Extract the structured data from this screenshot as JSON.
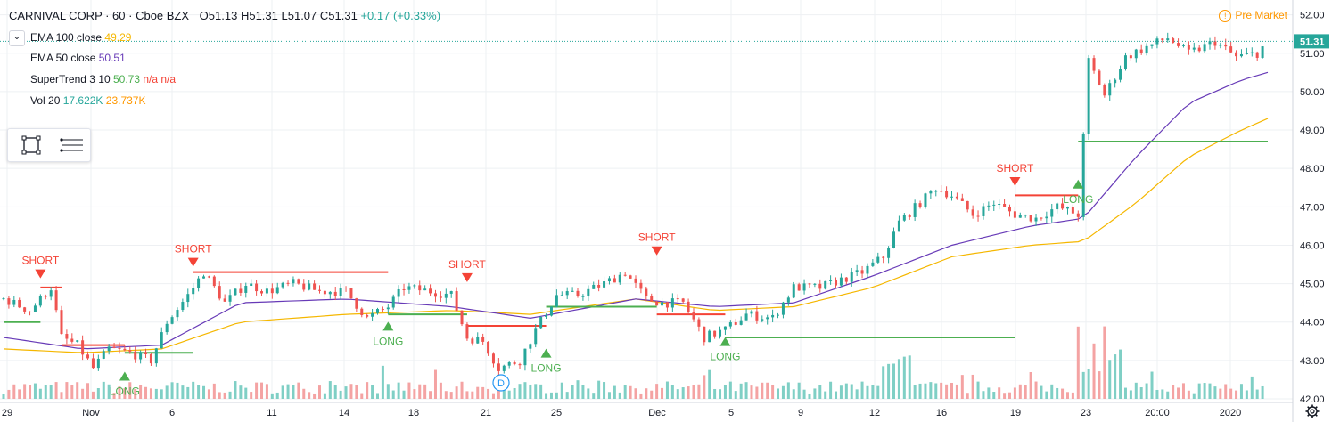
{
  "header": {
    "symbol": "CARNIVAL CORP · 60 · Cboe BZX",
    "open": "O51.13",
    "high": "H51.31",
    "low": "L51.07",
    "close": "C51.31",
    "change": "+0.17 (+0.33%)"
  },
  "indicators": [
    {
      "name": "EMA 100 close",
      "value": "49.29",
      "color": "#f5b700"
    },
    {
      "name": "EMA 50 close",
      "value": "50.51",
      "color": "#673ab7"
    },
    {
      "name": "SuperTrend 3 10",
      "value": "50.73",
      "extra1": "n/a",
      "extra2": "n/a",
      "color": "#4caf50",
      "extra_color": "#f44336"
    },
    {
      "name": "Vol 20",
      "value": "17.622K",
      "value2": "23.737K",
      "color": "#26a69a",
      "color2": "#ff9800"
    }
  ],
  "collapse_glyph": "⌄",
  "pre_market": {
    "icon": "!",
    "label": "Pre Market"
  },
  "last_price_label": "51.31",
  "dividend_marker": "D",
  "colors": {
    "up": "#26a69a",
    "down": "#ef5350",
    "vol_up": "#7fcfc5",
    "vol_down": "#f4a3a3",
    "ema100": "#f5b700",
    "ema50": "#673ab7",
    "st_long": "#4caf50",
    "st_short": "#f44336",
    "grid": "#eef0f3",
    "axis_text": "#131722",
    "last_price_bg": "#26a69a"
  },
  "chart_data": {
    "type": "candlestick",
    "y_axis_ticks": [
      "52.00",
      "51.00",
      "50.00",
      "49.00",
      "48.00",
      "47.00",
      "46.00",
      "45.00",
      "44.00",
      "43.00",
      "42.00"
    ],
    "ylim": [
      42.0,
      52.2
    ],
    "x_axis_ticks": [
      "29",
      "Nov",
      "6",
      "11",
      "14",
      "18",
      "21",
      "25",
      "Dec",
      "5",
      "9",
      "12",
      "16",
      "19",
      "23",
      "20:00",
      "2020"
    ],
    "n_bars": 280,
    "price_path": [
      [
        0,
        44.6
      ],
      [
        10,
        44.3
      ],
      [
        18,
        44.9
      ],
      [
        22,
        43.6
      ],
      [
        28,
        43.4
      ],
      [
        34,
        42.8
      ],
      [
        40,
        43.3
      ],
      [
        48,
        43.2
      ],
      [
        56,
        43.0
      ],
      [
        62,
        44.0
      ],
      [
        70,
        44.7
      ],
      [
        76,
        45.3
      ],
      [
        84,
        44.5
      ],
      [
        92,
        45.0
      ],
      [
        100,
        44.8
      ],
      [
        110,
        45.0
      ],
      [
        120,
        44.8
      ],
      [
        130,
        44.8
      ],
      [
        138,
        44.1
      ],
      [
        146,
        44.4
      ],
      [
        152,
        44.9
      ],
      [
        162,
        44.8
      ],
      [
        170,
        44.7
      ],
      [
        176,
        43.6
      ],
      [
        182,
        43.5
      ],
      [
        188,
        42.8
      ],
      [
        196,
        43.0
      ],
      [
        202,
        43.8
      ],
      [
        210,
        44.7
      ],
      [
        218,
        44.7
      ],
      [
        228,
        45.0
      ],
      [
        236,
        45.3
      ],
      [
        244,
        44.6
      ],
      [
        250,
        44.5
      ],
      [
        258,
        44.5
      ],
      [
        266,
        43.6
      ],
      [
        274,
        43.8
      ],
      [
        282,
        44.2
      ],
      [
        292,
        44.1
      ],
      [
        300,
        44.9
      ],
      [
        310,
        44.9
      ],
      [
        318,
        45.1
      ],
      [
        326,
        45.3
      ],
      [
        334,
        45.7
      ],
      [
        340,
        46.6
      ],
      [
        348,
        47.1
      ],
      [
        354,
        47.5
      ],
      [
        360,
        47.3
      ],
      [
        368,
        46.8
      ],
      [
        376,
        47.1
      ],
      [
        384,
        46.8
      ],
      [
        392,
        46.7
      ],
      [
        400,
        47.0
      ],
      [
        408,
        46.8
      ],
      [
        412,
        50.8
      ],
      [
        418,
        49.9
      ],
      [
        426,
        50.9
      ],
      [
        432,
        51.1
      ],
      [
        442,
        51.4
      ],
      [
        450,
        51.0
      ],
      [
        460,
        51.3
      ],
      [
        468,
        50.9
      ],
      [
        476,
        51.0
      ],
      [
        480,
        51.31
      ]
    ],
    "ema50_path": [
      [
        0,
        43.6
      ],
      [
        30,
        43.3
      ],
      [
        60,
        43.4
      ],
      [
        90,
        44.5
      ],
      [
        130,
        44.6
      ],
      [
        170,
        44.4
      ],
      [
        200,
        44.1
      ],
      [
        240,
        44.6
      ],
      [
        270,
        44.4
      ],
      [
        300,
        44.5
      ],
      [
        330,
        45.2
      ],
      [
        360,
        46.0
      ],
      [
        390,
        46.5
      ],
      [
        410,
        46.7
      ],
      [
        430,
        48.3
      ],
      [
        450,
        49.7
      ],
      [
        470,
        50.3
      ],
      [
        480,
        50.5
      ]
    ],
    "ema100_path": [
      [
        0,
        43.3
      ],
      [
        30,
        43.2
      ],
      [
        60,
        43.3
      ],
      [
        90,
        44.0
      ],
      [
        130,
        44.2
      ],
      [
        170,
        44.3
      ],
      [
        200,
        44.2
      ],
      [
        240,
        44.6
      ],
      [
        270,
        44.3
      ],
      [
        300,
        44.4
      ],
      [
        330,
        44.9
      ],
      [
        360,
        45.7
      ],
      [
        390,
        46.0
      ],
      [
        410,
        46.1
      ],
      [
        430,
        47.1
      ],
      [
        450,
        48.3
      ],
      [
        470,
        49.0
      ],
      [
        480,
        49.3
      ]
    ],
    "supertrend": [
      {
        "dir": "long",
        "from": 0,
        "to": 14,
        "level": 44.0
      },
      {
        "dir": "short",
        "from": 14,
        "to": 22,
        "level": 44.9
      },
      {
        "dir": "short",
        "from": 22,
        "to": 46,
        "level": 43.4
      },
      {
        "dir": "long",
        "from": 46,
        "to": 72,
        "level": 43.2
      },
      {
        "dir": "short",
        "from": 72,
        "to": 146,
        "level": 45.3
      },
      {
        "dir": "long",
        "from": 146,
        "to": 176,
        "level": 44.2
      },
      {
        "dir": "short",
        "from": 176,
        "to": 206,
        "level": 43.9
      },
      {
        "dir": "long",
        "from": 206,
        "to": 248,
        "level": 44.4
      },
      {
        "dir": "short",
        "from": 248,
        "to": 274,
        "level": 44.2
      },
      {
        "dir": "long",
        "from": 274,
        "to": 384,
        "level": 43.6
      },
      {
        "dir": "short",
        "from": 384,
        "to": 408,
        "level": 47.3
      },
      {
        "dir": "long",
        "from": 408,
        "to": 480,
        "level": 48.7
      }
    ],
    "signals": [
      {
        "type": "SHORT",
        "bar": 14,
        "price": 45.0
      },
      {
        "type": "LONG",
        "bar": 46,
        "price": 42.8
      },
      {
        "type": "SHORT",
        "bar": 72,
        "price": 45.3
      },
      {
        "type": "LONG",
        "bar": 146,
        "price": 44.1
      },
      {
        "type": "SHORT",
        "bar": 176,
        "price": 44.9
      },
      {
        "type": "LONG",
        "bar": 206,
        "price": 43.4
      },
      {
        "type": "SHORT",
        "bar": 248,
        "price": 45.6
      },
      {
        "type": "LONG",
        "bar": 274,
        "price": 43.7
      },
      {
        "type": "SHORT",
        "bar": 384,
        "price": 47.4
      },
      {
        "type": "LONG",
        "bar": 408,
        "price": 47.8
      }
    ]
  }
}
